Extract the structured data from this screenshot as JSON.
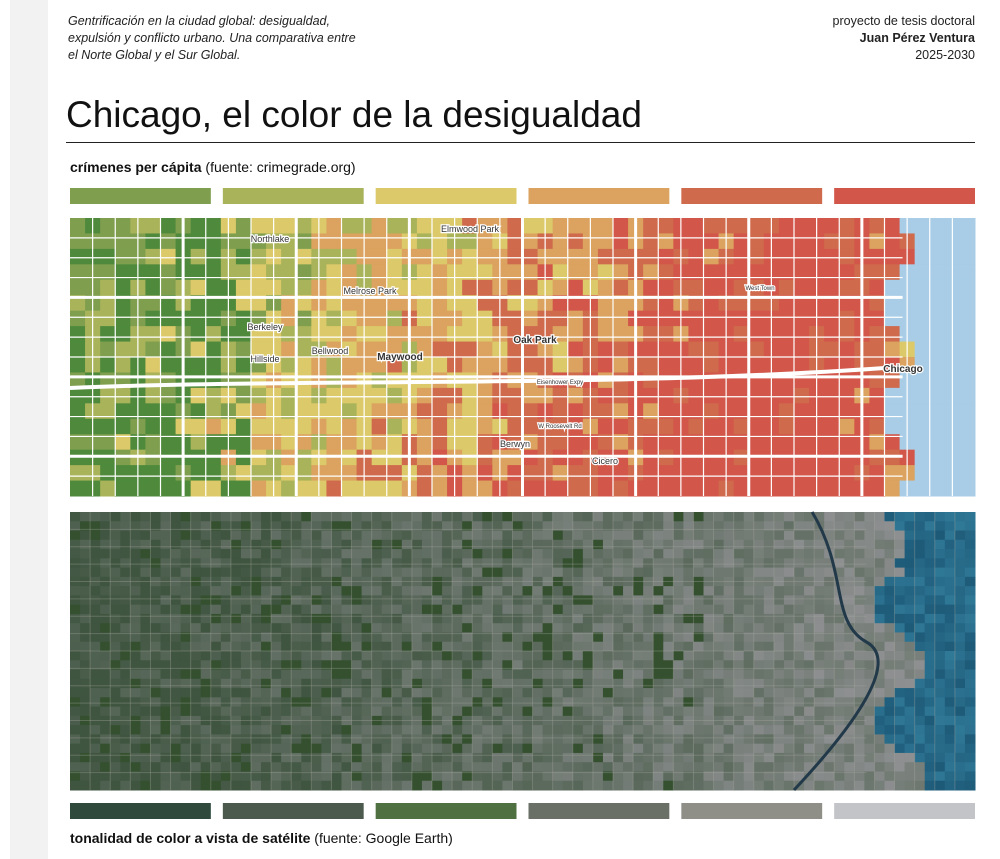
{
  "header": {
    "subtitle_lines": [
      "Gentrificación en la ciudad global: desigualdad,",
      "expulsión y conflicto urbano. Una comparativa entre",
      "el Norte Global y el Sur Global."
    ],
    "project": "proyecto de tesis doctoral",
    "author": "Juan Pérez Ventura",
    "years": "2025-2030"
  },
  "title": "Chicago, el color de la desigualdad",
  "crime_section": {
    "label_bold": "crímenes per cápita",
    "label_source": "(fuente: crimegrade.org)",
    "legend_colors": [
      "#7f9f4f",
      "#a9b35a",
      "#dbc96a",
      "#dba35f",
      "#cf6a4c",
      "#d2564a"
    ],
    "map_labels": [
      "Elmwood Park",
      "Northlake",
      "Melrose Park",
      "Berkeley",
      "Hillside",
      "Bellwood",
      "Maywood",
      "Oak Park",
      "Berwyn",
      "Cicero",
      "Chicago",
      "West Town",
      "Eisenhower Expy",
      "W Roosevelt Rd"
    ]
  },
  "satellite_section": {
    "label_bold": "tonalidad de color a vista de satélite",
    "label_source": "(fuente: Google Earth)",
    "legend_colors": [
      "#2f4a3c",
      "#4b5a4d",
      "#4f7040",
      "#6a7066",
      "#8f8f88",
      "#c3c4c8"
    ]
  }
}
